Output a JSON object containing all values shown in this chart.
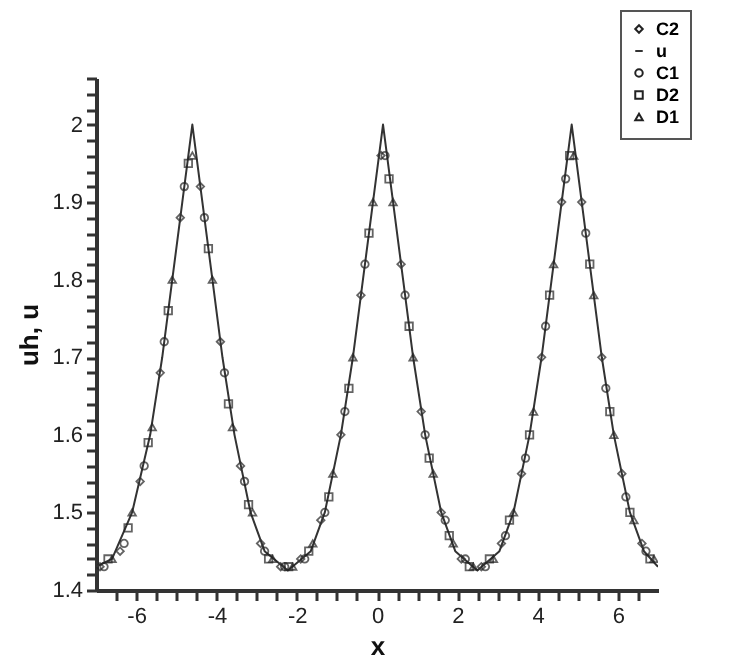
{
  "chart_data": {
    "type": "scatter",
    "xlabel": "x",
    "ylabel": "uh, u",
    "legend": "top right",
    "grid": false,
    "xlim": [
      -7,
      7
    ],
    "ylim": [
      1.4,
      2.06
    ],
    "xticks": [
      {
        "value": -6.5,
        "label": null
      },
      -6,
      {
        "value": -5.5,
        "label": null
      },
      {
        "value": -5,
        "label": null
      },
      {
        "value": -4.5,
        "label": null
      },
      -4,
      {
        "value": -3.5,
        "label": null
      },
      {
        "value": -3,
        "label": null
      },
      {
        "value": -2.5,
        "label": null
      },
      -2,
      {
        "value": -1.5,
        "label": null
      },
      {
        "value": -1,
        "label": null
      },
      {
        "value": -0.5,
        "label": null
      },
      0,
      {
        "value": 0.5,
        "label": null
      },
      {
        "value": 1,
        "label": null
      },
      {
        "value": 1.5,
        "label": null
      },
      2,
      {
        "value": 2.5,
        "label": null
      },
      {
        "value": 3,
        "label": null
      },
      {
        "value": 3.5,
        "label": null
      },
      4,
      {
        "value": 4.5,
        "label": null
      },
      {
        "value": 5,
        "label": null
      },
      {
        "value": 5.5,
        "label": null
      },
      6,
      {
        "value": 6.5,
        "label": null
      }
    ],
    "yticks": [
      1.4,
      {
        "value": 1.42,
        "label": null
      },
      {
        "value": 1.44,
        "label": null
      },
      {
        "value": 1.46,
        "label": null
      },
      {
        "value": 1.48,
        "label": null
      },
      1.5,
      {
        "value": 1.52,
        "label": null
      },
      {
        "value": 1.54,
        "label": null
      },
      {
        "value": 1.56,
        "label": null
      },
      {
        "value": 1.58,
        "label": null
      },
      1.6,
      {
        "value": 1.62,
        "label": null
      },
      {
        "value": 1.64,
        "label": null
      },
      {
        "value": 1.66,
        "label": null
      },
      {
        "value": 1.68,
        "label": null
      },
      1.7,
      {
        "value": 1.72,
        "label": null
      },
      {
        "value": 1.74,
        "label": null
      },
      {
        "value": 1.76,
        "label": null
      },
      {
        "value": 1.78,
        "label": null
      },
      1.8,
      {
        "value": 1.82,
        "label": null
      },
      {
        "value": 1.84,
        "label": null
      },
      {
        "value": 1.86,
        "label": null
      },
      {
        "value": 1.88,
        "label": null
      },
      1.9,
      {
        "value": 1.92,
        "label": null
      },
      {
        "value": 1.94,
        "label": null
      },
      {
        "value": 1.96,
        "label": null
      },
      {
        "value": 1.98,
        "label": null
      },
      2,
      {
        "value": 2.02,
        "label": null
      },
      {
        "value": 2.04,
        "label": null
      },
      {
        "value": 2.06,
        "label": null
      }
    ],
    "series": [
      {
        "name": "C2",
        "type": "scatter",
        "marker": "diamond",
        "color": "#222222",
        "x": [
          -6.9,
          -6.4,
          -5.9,
          -5.4,
          -4.9,
          -4.4,
          -3.9,
          -3.4,
          -2.9,
          -2.4,
          -1.9,
          -1.4,
          -0.9,
          -0.4,
          0.1,
          0.6,
          1.1,
          1.6,
          2.1,
          2.6,
          3.1,
          3.6,
          4.1,
          4.6,
          5.1,
          5.6,
          6.1,
          6.6
        ],
        "values": [
          1.43,
          1.45,
          1.54,
          1.68,
          1.88,
          1.92,
          1.72,
          1.56,
          1.46,
          1.43,
          1.44,
          1.49,
          1.6,
          1.78,
          1.96,
          1.82,
          1.63,
          1.5,
          1.44,
          1.43,
          1.46,
          1.55,
          1.7,
          1.9,
          1.9,
          1.7,
          1.55,
          1.46
        ]
      },
      {
        "name": "u",
        "type": "line",
        "marker": "none",
        "color": "#333333",
        "x": [
          -7,
          -6.6,
          -6.1,
          -5.65,
          -5.35,
          -5.1,
          -4.85,
          -4.7,
          -4.6,
          -4.5,
          -4.35,
          -4.1,
          -3.85,
          -3.55,
          -3.15,
          -2.8,
          -2.22,
          -1.65,
          -1.3,
          -0.9,
          -0.6,
          -0.35,
          -0.1,
          0.05,
          0.15,
          0.25,
          0.4,
          0.65,
          0.9,
          1.2,
          1.6,
          1.95,
          2.5,
          3.05,
          3.4,
          3.8,
          4.1,
          4.35,
          4.6,
          4.75,
          4.85,
          4.95,
          5.1,
          5.35,
          5.6,
          5.9,
          6.3,
          6.65,
          7
        ],
        "values": [
          1.43,
          1.44,
          1.5,
          1.6,
          1.7,
          1.8,
          1.9,
          1.96,
          2.0,
          1.96,
          1.9,
          1.8,
          1.7,
          1.6,
          1.5,
          1.45,
          1.425,
          1.45,
          1.5,
          1.6,
          1.7,
          1.8,
          1.9,
          1.96,
          2.0,
          1.96,
          1.9,
          1.8,
          1.7,
          1.6,
          1.5,
          1.45,
          1.425,
          1.45,
          1.5,
          1.6,
          1.7,
          1.8,
          1.9,
          1.96,
          2.0,
          1.96,
          1.9,
          1.8,
          1.7,
          1.6,
          1.5,
          1.45,
          1.43
        ]
      },
      {
        "name": "C1",
        "type": "scatter",
        "marker": "circle",
        "color": "#222222",
        "x": [
          -6.8,
          -6.3,
          -5.8,
          -5.3,
          -4.8,
          -4.3,
          -3.8,
          -3.3,
          -2.8,
          -2.3,
          -1.8,
          -1.3,
          -0.8,
          -0.3,
          0.2,
          0.7,
          1.2,
          1.7,
          2.2,
          2.7,
          3.2,
          3.7,
          4.2,
          4.7,
          5.2,
          5.7,
          6.2,
          6.7
        ],
        "values": [
          1.43,
          1.46,
          1.56,
          1.72,
          1.92,
          1.88,
          1.68,
          1.54,
          1.45,
          1.43,
          1.44,
          1.5,
          1.63,
          1.82,
          1.96,
          1.78,
          1.6,
          1.49,
          1.44,
          1.43,
          1.47,
          1.57,
          1.74,
          1.93,
          1.86,
          1.66,
          1.52,
          1.45
        ]
      },
      {
        "name": "D2",
        "type": "scatter",
        "marker": "square",
        "color": "#222222",
        "x": [
          -6.7,
          -6.2,
          -5.7,
          -5.2,
          -4.7,
          -4.2,
          -3.7,
          -3.2,
          -2.7,
          -2.2,
          -1.7,
          -1.2,
          -0.7,
          -0.2,
          0.3,
          0.8,
          1.3,
          1.8,
          2.3,
          2.8,
          3.3,
          3.8,
          4.3,
          4.8,
          5.3,
          5.8,
          6.3,
          6.8
        ],
        "values": [
          1.44,
          1.48,
          1.59,
          1.76,
          1.95,
          1.84,
          1.64,
          1.51,
          1.44,
          1.43,
          1.45,
          1.52,
          1.66,
          1.86,
          1.93,
          1.74,
          1.57,
          1.47,
          1.43,
          1.44,
          1.49,
          1.6,
          1.78,
          1.96,
          1.82,
          1.63,
          1.5,
          1.44
        ]
      },
      {
        "name": "D1",
        "type": "scatter",
        "marker": "triangle",
        "color": "#222222",
        "x": [
          -6.6,
          -6.1,
          -5.6,
          -5.1,
          -4.6,
          -4.1,
          -3.6,
          -3.1,
          -2.6,
          -2.1,
          -1.6,
          -1.1,
          -0.6,
          -0.1,
          0.4,
          0.9,
          1.4,
          1.9,
          2.4,
          2.9,
          3.4,
          3.9,
          4.4,
          4.9,
          5.4,
          5.9,
          6.4,
          6.9
        ],
        "values": [
          1.44,
          1.5,
          1.61,
          1.8,
          1.96,
          1.8,
          1.61,
          1.5,
          1.44,
          1.43,
          1.46,
          1.55,
          1.7,
          1.9,
          1.9,
          1.7,
          1.55,
          1.46,
          1.43,
          1.44,
          1.5,
          1.63,
          1.82,
          1.96,
          1.78,
          1.6,
          1.49,
          1.44
        ]
      }
    ]
  }
}
